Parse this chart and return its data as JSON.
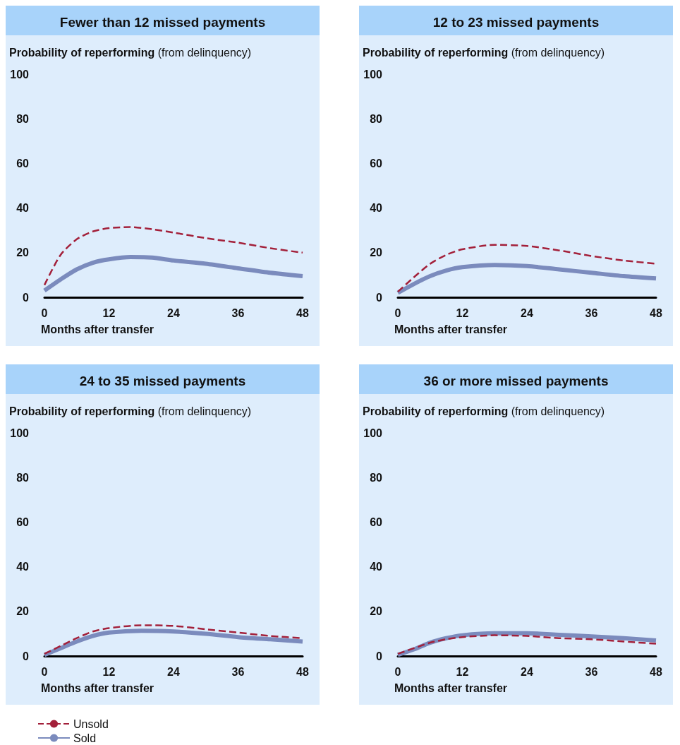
{
  "chart_data": [
    {
      "type": "line",
      "title": "Fewer than 12 missed payments",
      "ylabel": "Probability of reperforming (from delinquency)",
      "xlabel": "Months after transfer",
      "xlim": [
        0,
        48
      ],
      "xticks": [
        0,
        12,
        24,
        36,
        48
      ],
      "ylim": [
        0,
        100
      ],
      "yticks": [
        0,
        20,
        40,
        60,
        80,
        100
      ],
      "grid": false,
      "legend": false,
      "marker": "none",
      "x": [
        0,
        3,
        6,
        9,
        12,
        16,
        20,
        24,
        30,
        36,
        42,
        48
      ],
      "series": [
        {
          "color": "#a3203a",
          "line_style": "dashed",
          "values": [
            5.5,
            19,
            26,
            29.5,
            31,
            31.5,
            30.5,
            29,
            26.5,
            24.5,
            22,
            20
          ]
        },
        {
          "color": "#7b8bbd",
          "line_style": "solid",
          "values": [
            3,
            8,
            12.5,
            15.5,
            17,
            18,
            17.8,
            16.5,
            15,
            13,
            11,
            9.5
          ]
        }
      ]
    },
    {
      "type": "line",
      "title": "12 to 23 missed payments",
      "ylabel": "Probability of reperforming (from delinquency)",
      "xlabel": "Months after transfer",
      "xlim": [
        0,
        48
      ],
      "xticks": [
        0,
        12,
        24,
        36,
        48
      ],
      "ylim": [
        0,
        100
      ],
      "yticks": [
        0,
        20,
        40,
        60,
        80,
        100
      ],
      "grid": false,
      "legend": false,
      "marker": "none",
      "x": [
        0,
        3,
        6,
        9,
        12,
        18,
        24,
        30,
        36,
        42,
        48
      ],
      "series": [
        {
          "color": "#a3203a",
          "line_style": "dashed",
          "values": [
            2.5,
            9,
            15,
            19,
            21.5,
            23.5,
            23,
            21,
            18.5,
            16.5,
            15
          ]
        },
        {
          "color": "#7b8bbd",
          "line_style": "solid",
          "values": [
            2,
            6,
            9.5,
            12,
            13.5,
            14.5,
            14,
            12.5,
            11,
            9.5,
            8.5
          ]
        }
      ]
    },
    {
      "type": "line",
      "title": "24 to 35 missed payments",
      "ylabel": "Probability of reperforming (from delinquency)",
      "xlabel": "Months after transfer",
      "xlim": [
        0,
        48
      ],
      "xticks": [
        0,
        12,
        24,
        36,
        48
      ],
      "ylim": [
        0,
        100
      ],
      "yticks": [
        0,
        20,
        40,
        60,
        80,
        100
      ],
      "grid": false,
      "legend": "bottom left",
      "marker": "none",
      "x": [
        0,
        3,
        6,
        9,
        12,
        18,
        24,
        30,
        36,
        42,
        48
      ],
      "series": [
        {
          "name": "Unsold",
          "color": "#a3203a",
          "line_style": "dashed",
          "values": [
            1,
            4.5,
            8,
            11,
            12.5,
            13.8,
            13.5,
            12,
            10.5,
            9,
            8
          ]
        },
        {
          "name": "Sold",
          "color": "#7b8bbd",
          "line_style": "solid",
          "values": [
            0.5,
            3.5,
            6.5,
            9,
            10.5,
            11.3,
            11,
            10,
            8.5,
            7.5,
            6.5
          ]
        }
      ]
    },
    {
      "type": "line",
      "title": "36 or more missed payments",
      "ylabel": "Probability of reperforming (from delinquency)",
      "xlabel": "Months after transfer",
      "xlim": [
        0,
        48
      ],
      "xticks": [
        0,
        12,
        24,
        36,
        48
      ],
      "ylim": [
        0,
        100
      ],
      "yticks": [
        0,
        20,
        40,
        60,
        80,
        100
      ],
      "grid": false,
      "legend": false,
      "marker": "none",
      "x": [
        0,
        3,
        6,
        9,
        12,
        18,
        24,
        30,
        36,
        42,
        48
      ],
      "series": [
        {
          "color": "#a3203a",
          "line_style": "dashed",
          "values": [
            1,
            3.5,
            6,
            7.5,
            8.5,
            9.3,
            9,
            8,
            7.5,
            6.5,
            5.5
          ]
        },
        {
          "color": "#7b8bbd",
          "line_style": "solid",
          "values": [
            0.5,
            3,
            6,
            8,
            9.3,
            10.2,
            10.2,
            9.5,
            8.8,
            8,
            7
          ]
        }
      ]
    }
  ]
}
